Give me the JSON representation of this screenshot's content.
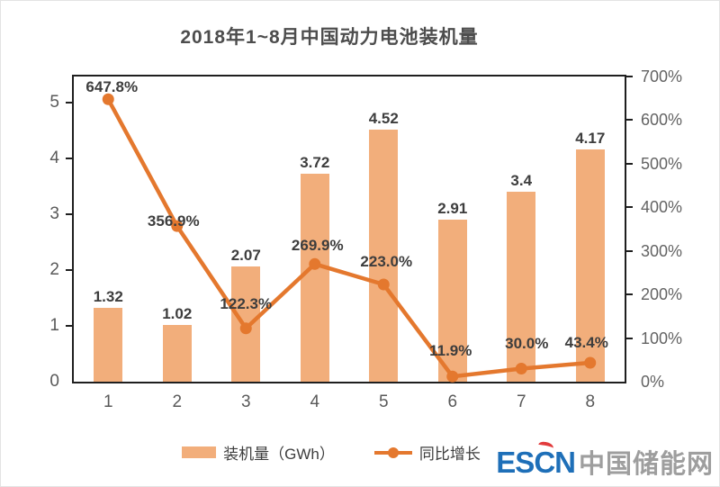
{
  "title": "2018年1~8月中国动力电池装机量",
  "chart_data": {
    "type": "combo-bar-line",
    "categories": [
      "1",
      "2",
      "3",
      "4",
      "5",
      "6",
      "7",
      "8"
    ],
    "series": [
      {
        "name": "装机量（GWh）",
        "type": "bar",
        "axis": "left",
        "values": [
          1.32,
          1.02,
          2.07,
          3.72,
          4.52,
          2.91,
          3.4,
          4.17
        ],
        "labels": [
          "1.32",
          "1.02",
          "2.07",
          "3.72",
          "4.52",
          "2.91",
          "3.4",
          "4.17"
        ],
        "color": "#F2AE7B"
      },
      {
        "name": "同比增长",
        "type": "line",
        "axis": "right",
        "values": [
          647.8,
          356.9,
          122.3,
          269.9,
          223.0,
          11.9,
          30.0,
          43.4
        ],
        "labels": [
          "647.8%",
          "356.9%",
          "122.3%",
          "269.9%",
          "223.0%",
          "11.9%",
          "30.0%",
          "43.4%"
        ],
        "color": "#E4782E"
      }
    ],
    "left_axis": {
      "min": 0,
      "max": 5.47,
      "ticks": [
        0,
        1,
        2,
        3,
        4,
        5
      ],
      "tick_labels": [
        "0",
        "1",
        "2",
        "3",
        "4",
        "5"
      ]
    },
    "right_axis": {
      "min": 0,
      "max": 700,
      "ticks": [
        0,
        100,
        200,
        300,
        400,
        500,
        600,
        700
      ],
      "tick_labels": [
        "0%",
        "100%",
        "200%",
        "300%",
        "400%",
        "500%",
        "600%",
        "700%"
      ]
    },
    "legend_position": "bottom",
    "grid": false
  },
  "legend": {
    "bar_label": "装机量（GWh）",
    "line_label": "同比增长"
  },
  "watermark": {
    "escn": "ESCN",
    "site_name": "中国储能网"
  },
  "colors": {
    "bar": "#F2AE7B",
    "line": "#E4782E",
    "frame": "#1F1F1F",
    "title_text": "#4D4D4D",
    "axis_text": "#595959",
    "data_label_text": "#3D3D3D",
    "logo_blue": "#1E6FB8",
    "logo_gray": "#9E9E9E",
    "logo_red": "#E23B3C"
  }
}
